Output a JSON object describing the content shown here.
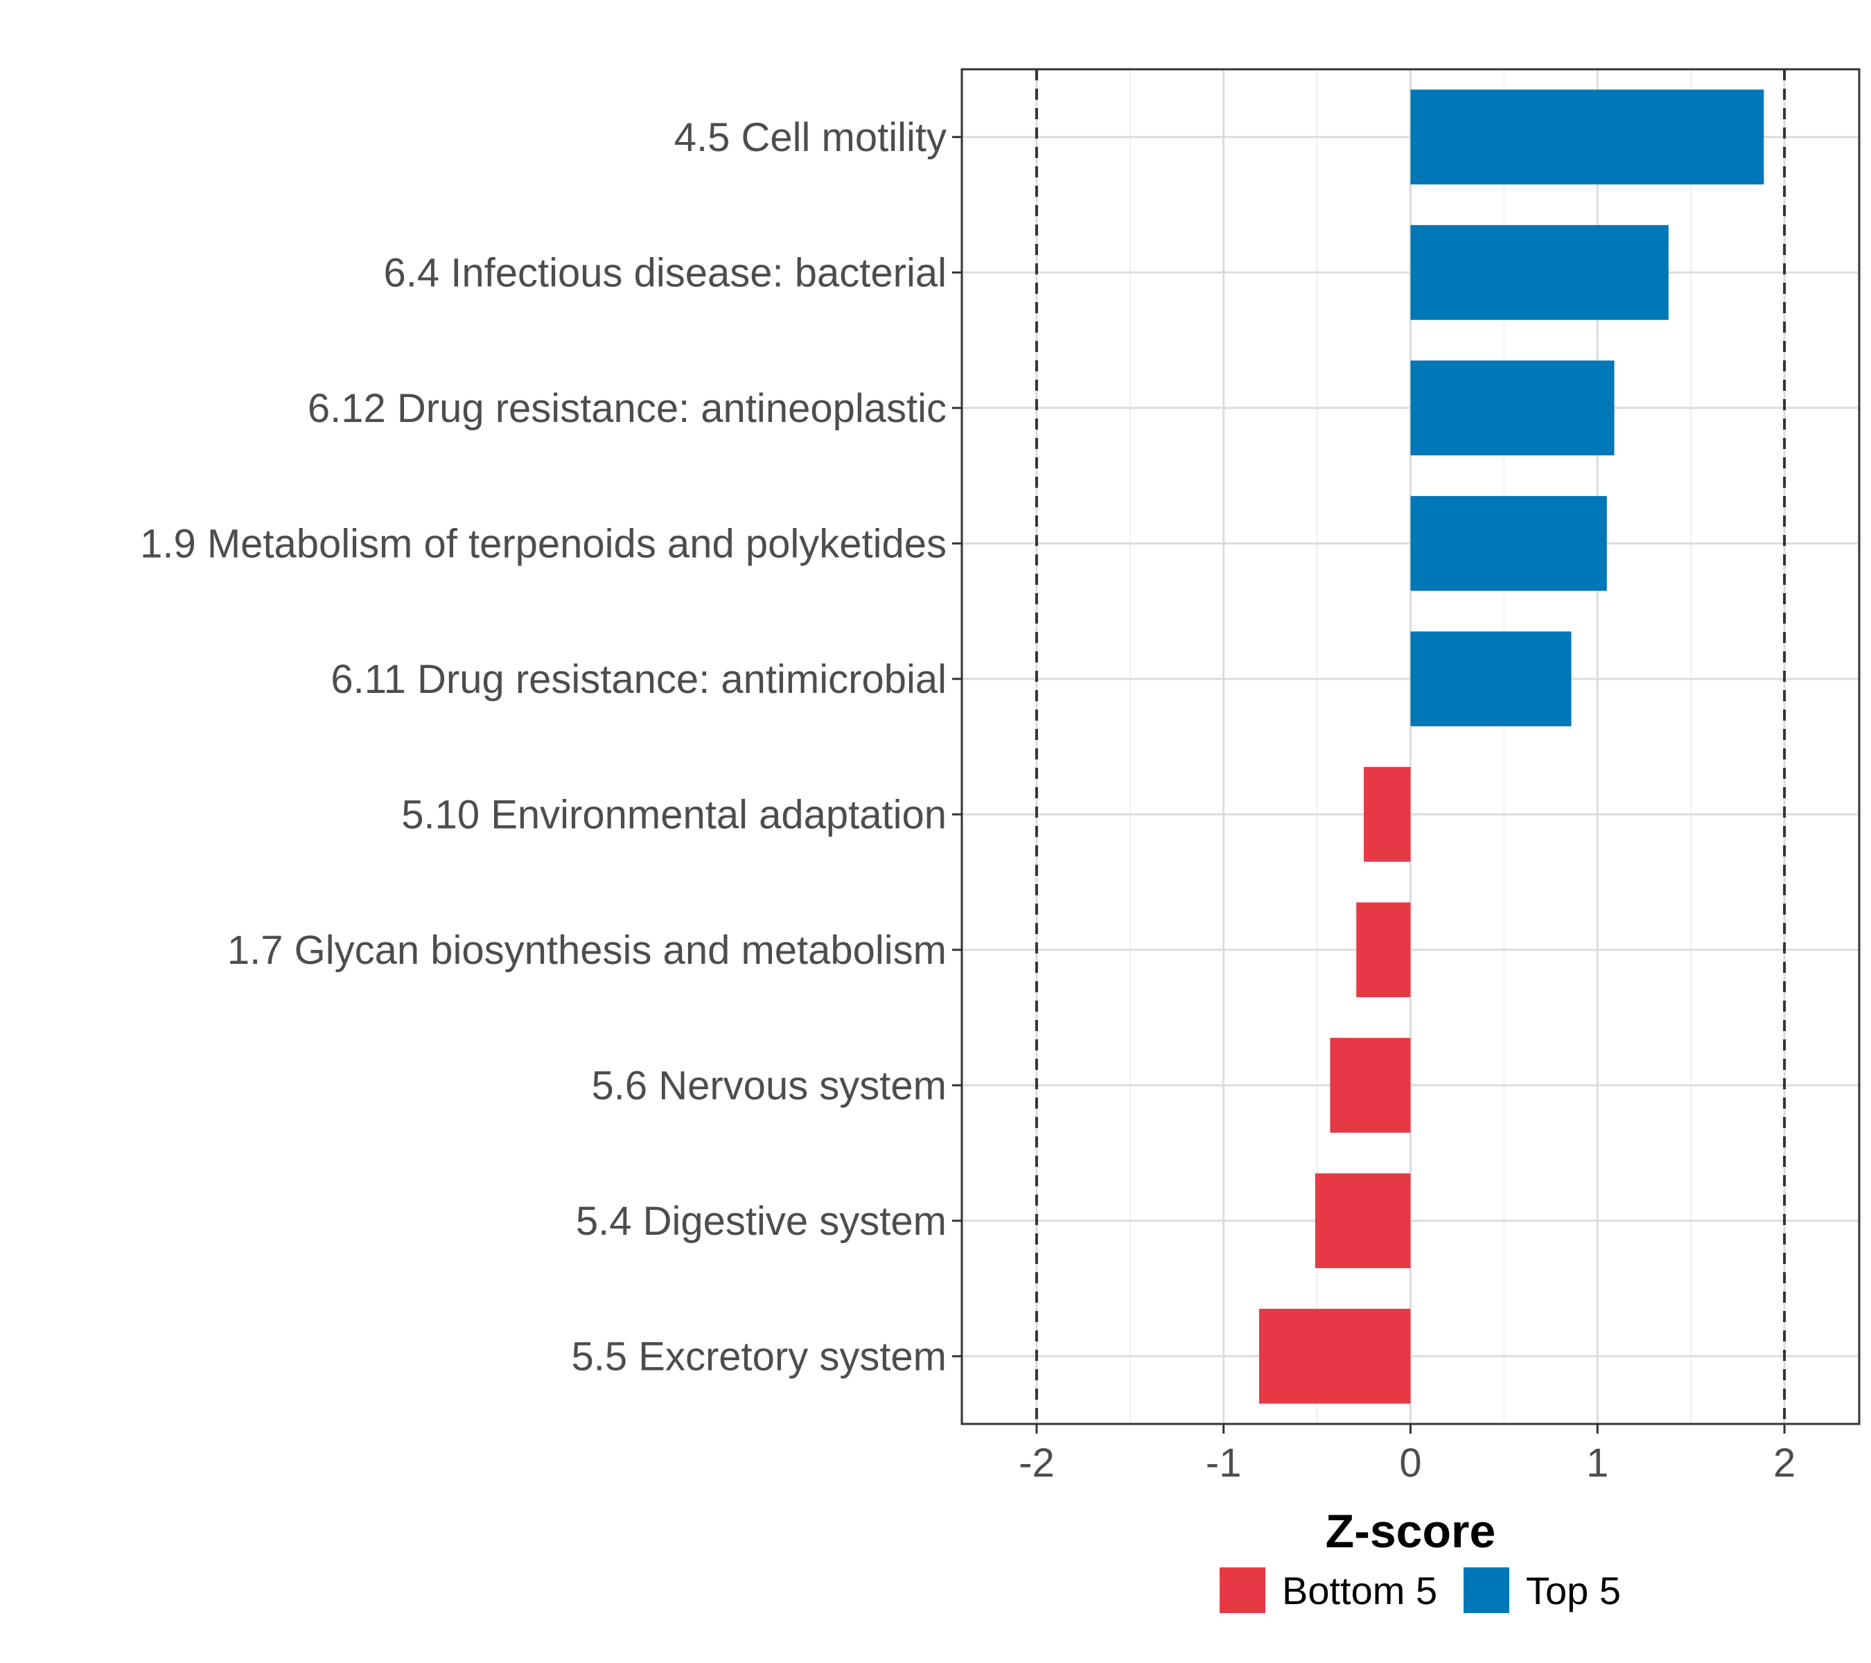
{
  "chart_data": {
    "type": "bar",
    "orientation": "horizontal",
    "title": "",
    "xlabel": "Z-score",
    "ylabel": "",
    "xlim": [
      -2.4,
      2.4
    ],
    "xticks": [
      -2,
      -1,
      0,
      1,
      2
    ],
    "reference_lines": [
      -2,
      2
    ],
    "grid": true,
    "categories": [
      "4.5 Cell motility",
      "6.4 Infectious disease: bacterial",
      "6.12 Drug resistance: antineoplastic",
      "1.9 Metabolism of terpenoids and polyketides",
      "6.11 Drug resistance: antimicrobial",
      "5.10 Environmental adaptation",
      "1.7 Glycan biosynthesis and metabolism",
      "5.6 Nervous system",
      "5.4 Digestive system",
      "5.5 Excretory system"
    ],
    "values": [
      1.89,
      1.38,
      1.09,
      1.05,
      0.86,
      -0.25,
      -0.29,
      -0.43,
      -0.51,
      -0.81
    ],
    "groups": [
      "Top 5",
      "Top 5",
      "Top 5",
      "Top 5",
      "Top 5",
      "Bottom 5",
      "Bottom 5",
      "Bottom 5",
      "Bottom 5",
      "Bottom 5"
    ],
    "legend": {
      "placement": "bottom",
      "entries": [
        {
          "label": "Bottom 5",
          "color": "#e63946"
        },
        {
          "label": "Top 5",
          "color": "#0077b6"
        }
      ]
    },
    "colors": {
      "Top 5": "#0077b6",
      "Bottom 5": "#e63946"
    }
  }
}
